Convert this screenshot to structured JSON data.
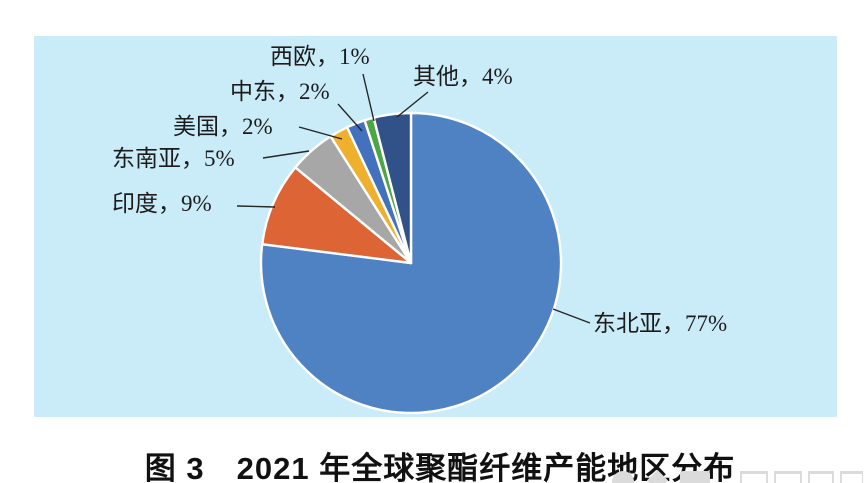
{
  "figure": {
    "caption": "图 3　2021 年全球聚酯纤维产能地区分布",
    "panel_background": "#CAECF9",
    "label_text_color": "#1c1c1c",
    "leader_line_color": "#262626",
    "slice_border_color": "#ffffff",
    "watermark_color": "#DBDBDB"
  },
  "chart_data": {
    "type": "pie",
    "title": "图 3　2021 年全球聚酯纤维产能地区分布",
    "unit": "%",
    "start_angle": "12 o'clock, clockwise",
    "legend_position": "none (leader-line labels)",
    "slices": [
      {
        "label": "东北亚",
        "value": 77,
        "display": "东北亚，77%",
        "color": "#4E82C2"
      },
      {
        "label": "印度",
        "value": 9,
        "display": "印度，9%",
        "color": "#DD6434"
      },
      {
        "label": "东南亚",
        "value": 5,
        "display": "东南亚，5%",
        "color": "#A7A7A7"
      },
      {
        "label": "美国",
        "value": 2,
        "display": "美国，2%",
        "color": "#EFB02E"
      },
      {
        "label": "中东",
        "value": 2,
        "display": "中东，2%",
        "color": "#4371BE"
      },
      {
        "label": "西欧",
        "value": 1,
        "display": "西欧，1%",
        "color": "#4EA546"
      },
      {
        "label": "其他",
        "value": 4,
        "display": "其他，4%",
        "color": "#315289"
      }
    ]
  }
}
